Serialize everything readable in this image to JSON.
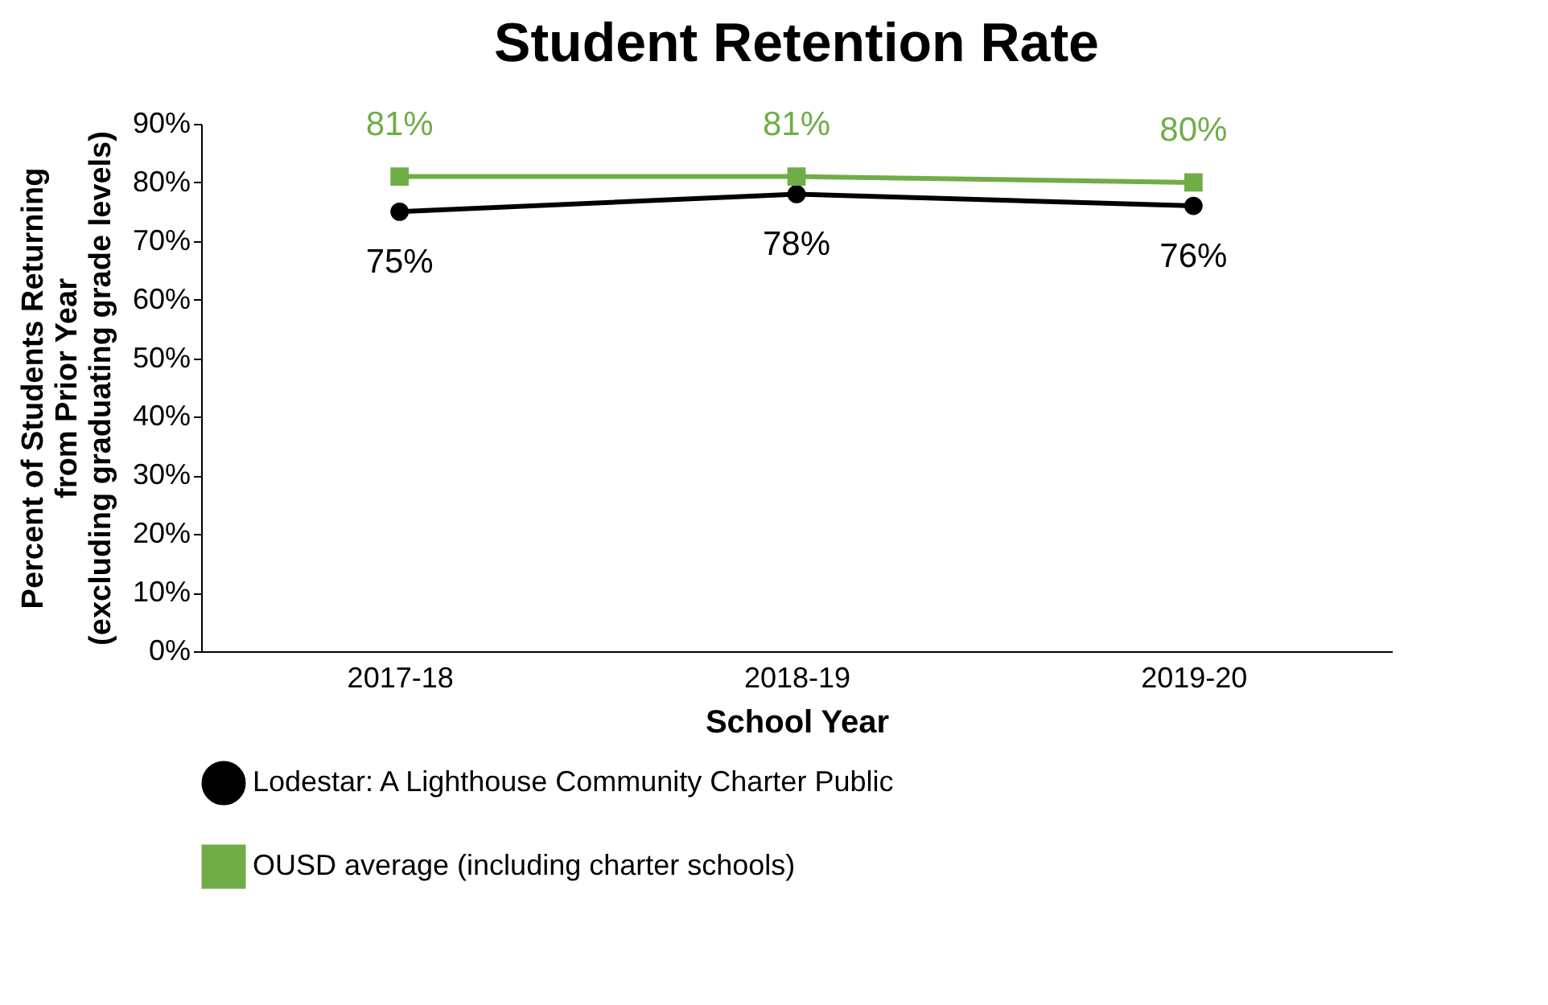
{
  "chart_data": {
    "type": "line",
    "title": "Student Retention Rate",
    "xlabel": "School Year",
    "ylabel": "Percent of Students Returning\nfrom Prior Year\n(excluding graduating grade levels)",
    "categories": [
      "2017-18",
      "2018-19",
      "2019-20"
    ],
    "series": [
      {
        "name": "Lodestar: A Lighthouse Community Charter Public",
        "color": "#000000",
        "values": [
          75,
          78,
          76
        ],
        "value_labels": [
          "75%",
          "78%",
          "76%"
        ],
        "marker": "circle"
      },
      {
        "name": "OUSD average (including charter schools)",
        "color": "#70ad47",
        "values": [
          81,
          81,
          80
        ],
        "value_labels": [
          "81%",
          "81%",
          "80%"
        ],
        "marker": "square"
      }
    ],
    "ylim": [
      0,
      90
    ],
    "yticks": [
      {
        "value": 0,
        "label": "0%"
      },
      {
        "value": 10,
        "label": "10%"
      },
      {
        "value": 20,
        "label": "20%"
      },
      {
        "value": 30,
        "label": "30%"
      },
      {
        "value": 40,
        "label": "40%"
      },
      {
        "value": 50,
        "label": "50%"
      },
      {
        "value": 60,
        "label": "60%"
      },
      {
        "value": 70,
        "label": "70%"
      },
      {
        "value": 80,
        "label": "80%"
      },
      {
        "value": 90,
        "label": "90%"
      }
    ],
    "grid": false,
    "legend": "bottom",
    "line_style": "solid"
  }
}
